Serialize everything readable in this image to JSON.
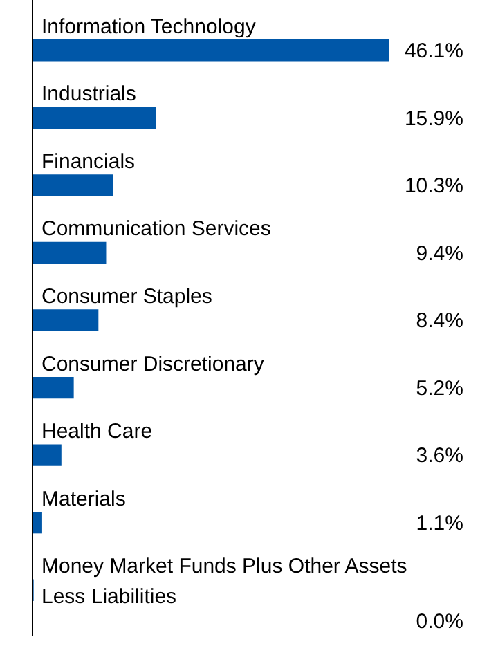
{
  "chart_data": {
    "type": "bar",
    "orientation": "horizontal",
    "categories": [
      "Information Technology",
      "Industrials",
      "Financials",
      "Communication Services",
      "Consumer Staples",
      "Consumer Discretionary",
      "Health Care",
      "Materials",
      "Money Market Funds Plus Other Assets Less Liabilities"
    ],
    "values": [
      46.1,
      15.9,
      10.3,
      9.4,
      8.4,
      5.2,
      3.6,
      1.1,
      0.0
    ],
    "value_labels": [
      "46.1%",
      "15.9%",
      "10.3%",
      "9.4%",
      "8.4%",
      "5.2%",
      "3.6%",
      "1.1%",
      "0.0%"
    ],
    "color": "#0057a8",
    "legend": false
  }
}
